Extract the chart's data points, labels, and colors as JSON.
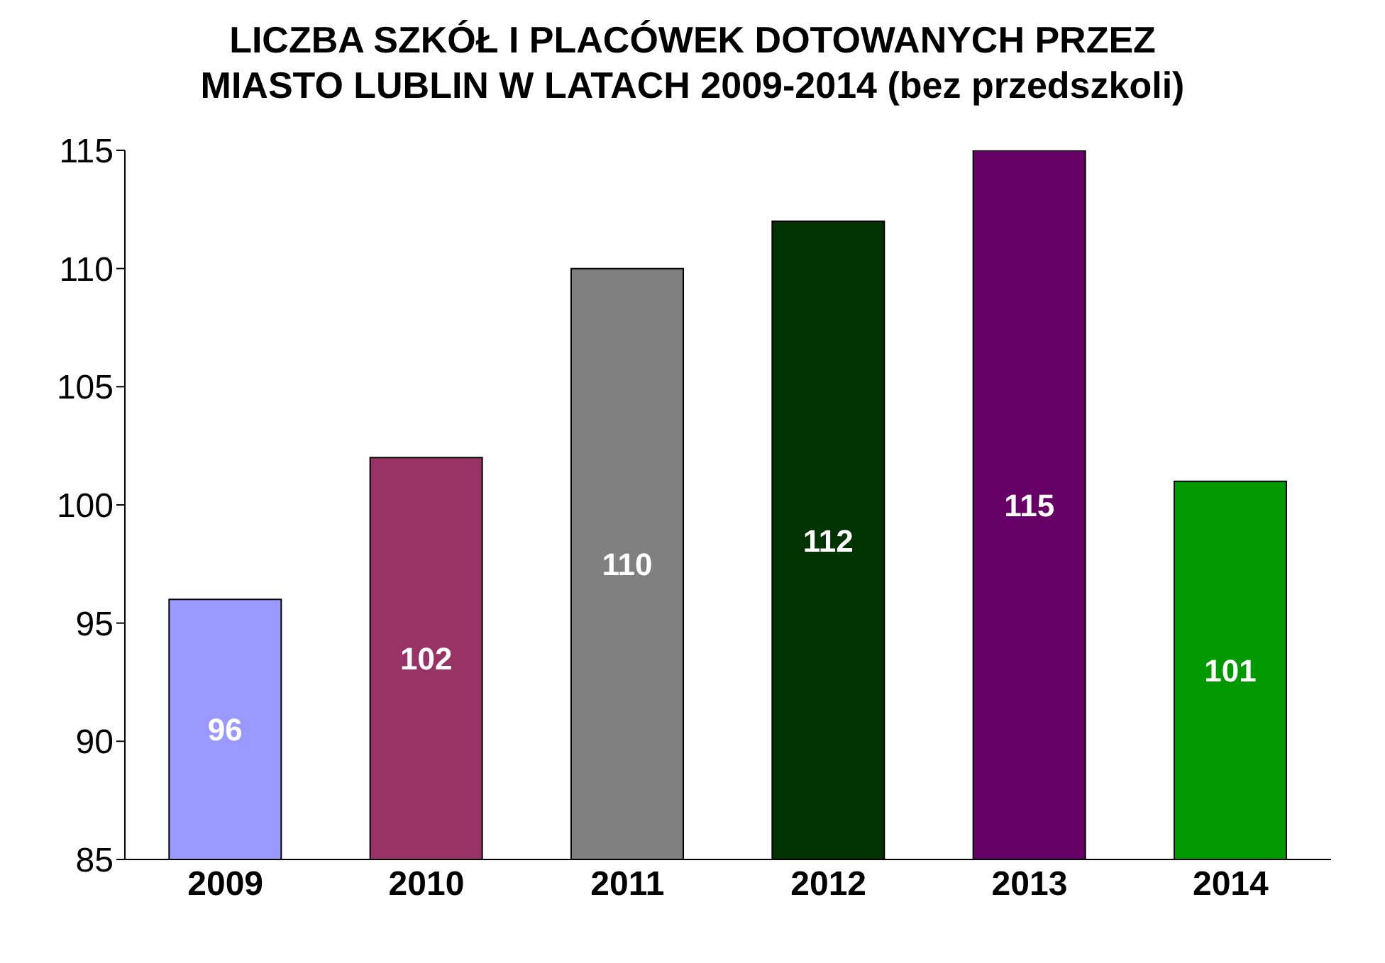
{
  "chart_data": {
    "type": "bar",
    "title": "LICZBA SZKÓŁ I PLACÓWEK DOTOWANYCH PRZEZ MIASTO LUBLIN W LATACH 2009-2014 (bez przedszkoli)",
    "categories": [
      "2009",
      "2010",
      "2011",
      "2012",
      "2013",
      "2014"
    ],
    "values": [
      96,
      102,
      110,
      112,
      115,
      101
    ],
    "colors": [
      "#9999ff",
      "#993366",
      "#808080",
      "#003300",
      "#660066",
      "#009900"
    ],
    "ylim": [
      85,
      115
    ],
    "yticks": [
      85,
      90,
      95,
      100,
      105,
      110,
      115
    ],
    "grid": false,
    "data_labels": true
  }
}
